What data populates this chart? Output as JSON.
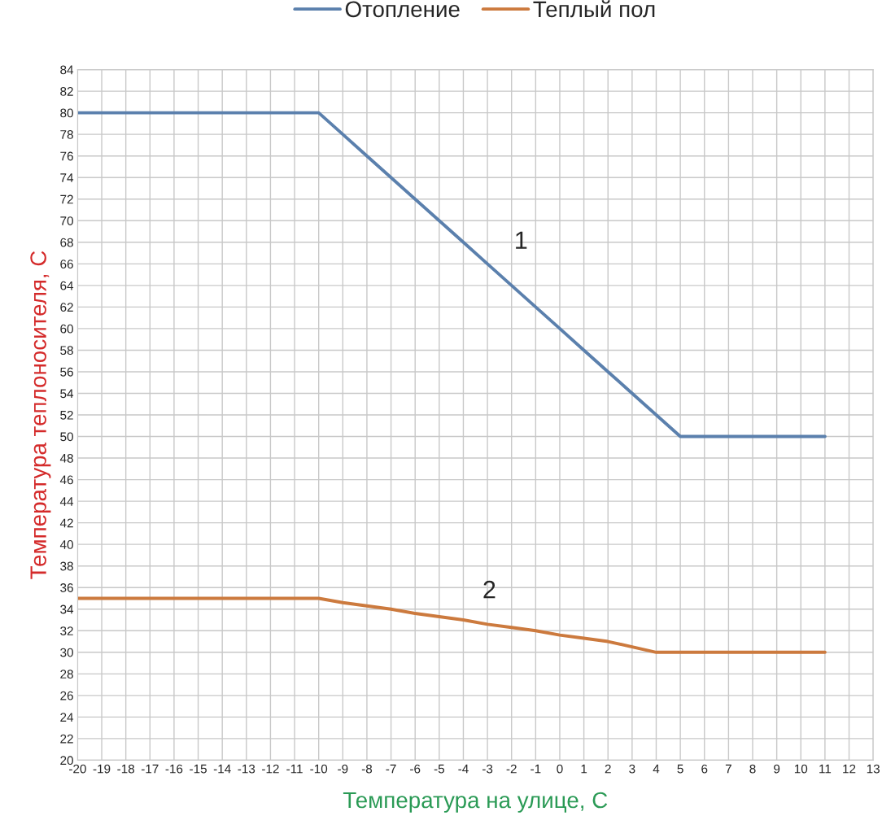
{
  "chart_data": {
    "type": "line",
    "xlabel": "Температура на улице, С",
    "ylabel": "Температура теплоносителя, С",
    "x": [
      -20,
      -19,
      -18,
      -17,
      -16,
      -15,
      -14,
      -13,
      -12,
      -11,
      -10,
      -9,
      -8,
      -7,
      -6,
      -5,
      -4,
      -3,
      -2,
      -1,
      0,
      1,
      2,
      3,
      4,
      5,
      6,
      7,
      8,
      9,
      10,
      11
    ],
    "series": [
      {
        "name": "Отопление",
        "color": "#5b80ad",
        "values": [
          80,
          80,
          80,
          80,
          80,
          80,
          80,
          80,
          80,
          80,
          80,
          78,
          76,
          74,
          72,
          70,
          68,
          66,
          64,
          62,
          60,
          58,
          56,
          54,
          52,
          50,
          50,
          50,
          50,
          50,
          50,
          50
        ]
      },
      {
        "name": "Теплый пол",
        "color": "#cc7a3e",
        "values": [
          35,
          35,
          35,
          35,
          35,
          35,
          35,
          35,
          35,
          35,
          35,
          34.6,
          34.3,
          34,
          33.6,
          33.3,
          33,
          32.6,
          32.3,
          32,
          31.6,
          31.3,
          31,
          30.5,
          30,
          30,
          30,
          30,
          30,
          30,
          30,
          30
        ]
      }
    ],
    "annotations": [
      "1",
      "2"
    ],
    "xlim": [
      -20,
      13
    ],
    "xticks": [
      -20,
      -19,
      -18,
      -17,
      -16,
      -15,
      -14,
      -13,
      -12,
      -11,
      -10,
      -9,
      -8,
      -7,
      -6,
      -5,
      -4,
      -3,
      -2,
      -1,
      0,
      1,
      2,
      3,
      4,
      5,
      6,
      7,
      8,
      9,
      10,
      11,
      12,
      13
    ],
    "ylim": [
      20,
      84
    ],
    "yticks": [
      20,
      22,
      24,
      26,
      28,
      30,
      32,
      34,
      36,
      38,
      40,
      42,
      44,
      46,
      48,
      50,
      52,
      54,
      56,
      58,
      60,
      62,
      64,
      66,
      68,
      70,
      72,
      74,
      76,
      78,
      80,
      82,
      84
    ],
    "grid": true,
    "legend": "top",
    "marker": "none",
    "line_style": "solid"
  }
}
